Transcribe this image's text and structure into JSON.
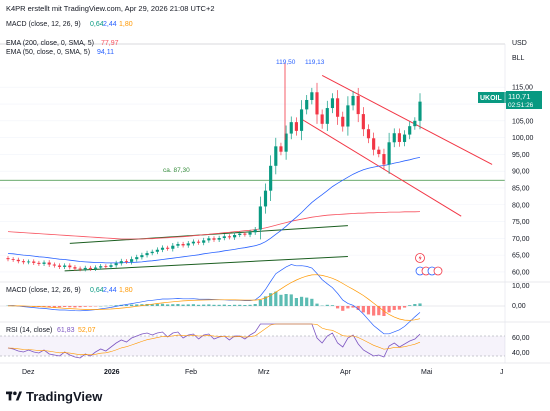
{
  "header": {
    "credit": "K4PR erstellt mit TradingView.com, Apr 29, 2026 21:08 UTC+2"
  },
  "indicators": {
    "macd_top": {
      "label": "MACD (close, 12, 26, 9)",
      "v1": "0,64",
      "v2": "2,44",
      "v3": "1,80"
    },
    "ema200": {
      "label": "EMA (200, close, 0, SMA, 5)",
      "value": "77,97"
    },
    "ema50": {
      "label": "EMA (50, close, 0, SMA, 5)",
      "value": "94,11"
    },
    "macd_pane": {
      "label": "MACD (close, 12, 26, 9)",
      "v1": "0,64",
      "v2": "2,44",
      "v3": "1,80"
    },
    "rsi_pane": {
      "label": "RSI (14, close)",
      "v1": "61,83",
      "v2": "52,07"
    }
  },
  "price_axis": {
    "currency": "USD",
    "unit": "BLL",
    "ticks": [
      "115,00",
      "110,00",
      "105,00",
      "100,00",
      "95,00",
      "90,00",
      "85,00",
      "80,00",
      "75,00",
      "70,00",
      "65,00",
      "60,00"
    ],
    "macd_ticks": [
      "10,00",
      "0,00"
    ],
    "rsi_ticks": [
      "60,00",
      "40,00"
    ]
  },
  "symbol_tag": {
    "symbol": "UKOIL",
    "price": "110,71",
    "countdown": "02:51:26"
  },
  "annotations": {
    "high1": "119,50",
    "high2": "119,13",
    "support_label": "ca. 87,30"
  },
  "time_axis": {
    "labels": [
      "Dez",
      "2026",
      "Feb",
      "Mrz",
      "Apr",
      "Mai",
      "J"
    ]
  },
  "footer": {
    "brand": "TradingView"
  },
  "colors": {
    "up": "#089981",
    "down": "#f23645",
    "ema200": "#f7525f",
    "ema50": "#2962ff",
    "channel_down": "#f23645",
    "channel_up": "#1b5e20",
    "support": "#388e3c",
    "macd_line": "#2962ff",
    "signal_line": "#ff9800",
    "rsi": "#7e57c2",
    "axis_text": "#131722"
  },
  "chart_data": {
    "type": "candlestick",
    "title": "UKOIL",
    "ylim": [
      57,
      124
    ],
    "support_level": 87.3,
    "closes": [
      63.8,
      63.6,
      63.2,
      62.9,
      63.1,
      62.7,
      62.4,
      62.8,
      62.2,
      61.9,
      61.5,
      61.9,
      61.4,
      61.0,
      60.8,
      61.2,
      60.9,
      61.3,
      61.7,
      61.5,
      62.0,
      62.6,
      63.2,
      63.0,
      63.8,
      64.4,
      65.0,
      65.6,
      66.0,
      66.6,
      67.2,
      66.9,
      67.8,
      68.3,
      67.9,
      68.5,
      69.0,
      68.7,
      69.4,
      70.0,
      69.6,
      70.1,
      70.6,
      70.3,
      71.0,
      71.4,
      71.1,
      71.8,
      72.6,
      79.5,
      84.2,
      91.6,
      97.4,
      95.8,
      101.2,
      104.6,
      102.0,
      108.4,
      111.2,
      113.5,
      106.9,
      104.1,
      108.8,
      111.7,
      106.2,
      103.3,
      109.6,
      112.4,
      107.0,
      102.5,
      99.8,
      96.4,
      95.1,
      92.0,
      98.6,
      101.3,
      98.7,
      100.9,
      103.4,
      105.0,
      110.71
    ],
    "ema200": [
      72.0,
      71.9,
      71.8,
      71.7,
      71.6,
      71.5,
      71.4,
      71.3,
      71.2,
      71.1,
      71.0,
      70.9,
      70.8,
      70.7,
      70.6,
      70.5,
      70.4,
      70.3,
      70.2,
      70.1,
      70.0,
      69.9,
      69.8,
      69.8,
      69.8,
      69.8,
      69.8,
      69.9,
      69.9,
      70.0,
      70.1,
      70.2,
      70.3,
      70.4,
      70.5,
      70.6,
      70.8,
      70.9,
      71.1,
      71.2,
      71.4,
      71.5,
      71.7,
      71.8,
      72.0,
      72.1,
      72.3,
      72.4,
      72.6,
      72.8,
      73.1,
      73.5,
      73.9,
      74.3,
      74.7,
      75.1,
      75.4,
      75.7,
      76.0,
      76.3,
      76.5,
      76.7,
      76.9,
      77.0,
      77.1,
      77.2,
      77.3,
      77.4,
      77.5,
      77.5,
      77.6,
      77.6,
      77.7,
      77.7,
      77.8,
      77.8,
      77.8,
      77.9,
      77.9,
      77.9,
      77.97
    ],
    "ema50": [
      65.5,
      65.4,
      65.2,
      65.0,
      64.9,
      64.7,
      64.5,
      64.4,
      64.2,
      64.0,
      63.8,
      63.7,
      63.5,
      63.3,
      63.1,
      63.0,
      62.9,
      62.8,
      62.8,
      62.7,
      62.7,
      62.7,
      62.7,
      62.8,
      62.8,
      62.9,
      63.0,
      63.2,
      63.3,
      63.5,
      63.7,
      63.9,
      64.1,
      64.3,
      64.5,
      64.7,
      64.9,
      65.1,
      65.4,
      65.6,
      65.8,
      66.0,
      66.3,
      66.5,
      66.7,
      67.0,
      67.2,
      67.5,
      67.8,
      68.3,
      69.0,
      70.0,
      71.2,
      72.3,
      73.6,
      75.0,
      76.3,
      77.7,
      79.2,
      80.7,
      81.9,
      83.0,
      84.2,
      85.4,
      86.4,
      87.3,
      88.2,
      89.1,
      89.8,
      90.4,
      90.9,
      91.2,
      91.5,
      91.7,
      92.0,
      92.4,
      92.7,
      93.1,
      93.4,
      93.8,
      94.11
    ],
    "macd_hist": [
      0.1,
      0.05,
      -0.1,
      -0.2,
      -0.15,
      -0.2,
      -0.25,
      -0.2,
      -0.3,
      -0.35,
      -0.3,
      -0.25,
      -0.3,
      -0.35,
      -0.3,
      -0.2,
      -0.15,
      -0.1,
      0.0,
      0.05,
      0.1,
      0.2,
      0.3,
      0.25,
      0.35,
      0.4,
      0.45,
      0.5,
      0.45,
      0.5,
      0.55,
      0.4,
      0.45,
      0.5,
      0.35,
      0.4,
      0.45,
      0.3,
      0.35,
      0.4,
      0.3,
      0.3,
      0.35,
      0.25,
      0.3,
      0.3,
      0.25,
      0.3,
      0.5,
      1.5,
      2.4,
      3.2,
      3.6,
      2.8,
      3.0,
      2.9,
      2.0,
      2.3,
      2.1,
      1.8,
      0.6,
      0.1,
      0.3,
      0.2,
      -0.6,
      -1.2,
      -0.6,
      -0.4,
      -1.0,
      -1.6,
      -2.1,
      -2.4,
      -2.3,
      -2.5,
      -1.6,
      -1.0,
      -0.9,
      -0.4,
      0.2,
      0.5,
      0.64
    ],
    "rsi": [
      48,
      47,
      45,
      44,
      46,
      44,
      43,
      46,
      42,
      41,
      40,
      44,
      41,
      39,
      38,
      42,
      40,
      44,
      47,
      45,
      49,
      53,
      56,
      54,
      58,
      60,
      62,
      63,
      61,
      63,
      64,
      59,
      63,
      64,
      58,
      61,
      62,
      57,
      61,
      62,
      57,
      59,
      60,
      56,
      60,
      60,
      57,
      61,
      64,
      78,
      82,
      85,
      86,
      80,
      82,
      81,
      72,
      76,
      74,
      72,
      58,
      53,
      60,
      63,
      53,
      49,
      58,
      61,
      52,
      46,
      43,
      40,
      41,
      39,
      50,
      53,
      49,
      52,
      55,
      57,
      61.83
    ]
  }
}
